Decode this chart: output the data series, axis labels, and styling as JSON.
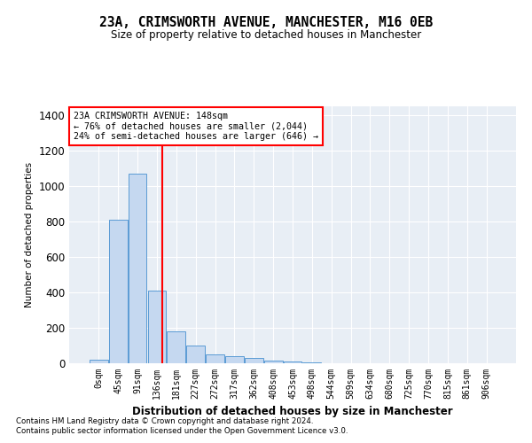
{
  "title": "23A, CRIMSWORTH AVENUE, MANCHESTER, M16 0EB",
  "subtitle": "Size of property relative to detached houses in Manchester",
  "xlabel": "Distribution of detached houses by size in Manchester",
  "ylabel": "Number of detached properties",
  "bar_color": "#c5d8f0",
  "bar_edge_color": "#5b9bd5",
  "background_color": "#e8eef5",
  "grid_color": "#ffffff",
  "annotation_text": "23A CRIMSWORTH AVENUE: 148sqm\n← 76% of detached houses are smaller (2,044)\n24% of semi-detached houses are larger (646) →",
  "property_size": 148,
  "bin_width": 45,
  "categories": [
    "0sqm",
    "45sqm",
    "91sqm",
    "136sqm",
    "181sqm",
    "227sqm",
    "272sqm",
    "317sqm",
    "362sqm",
    "408sqm",
    "453sqm",
    "498sqm",
    "544sqm",
    "589sqm",
    "634sqm",
    "680sqm",
    "725sqm",
    "770sqm",
    "815sqm",
    "861sqm",
    "906sqm"
  ],
  "values": [
    20,
    810,
    1070,
    410,
    180,
    100,
    50,
    40,
    30,
    15,
    10,
    5,
    2,
    1,
    0,
    0,
    0,
    0,
    0,
    0,
    0
  ],
  "ylim": [
    0,
    1450
  ],
  "yticks": [
    0,
    200,
    400,
    600,
    800,
    1000,
    1200,
    1400
  ],
  "footnote1": "Contains HM Land Registry data © Crown copyright and database right 2024.",
  "footnote2": "Contains public sector information licensed under the Open Government Licence v3.0."
}
